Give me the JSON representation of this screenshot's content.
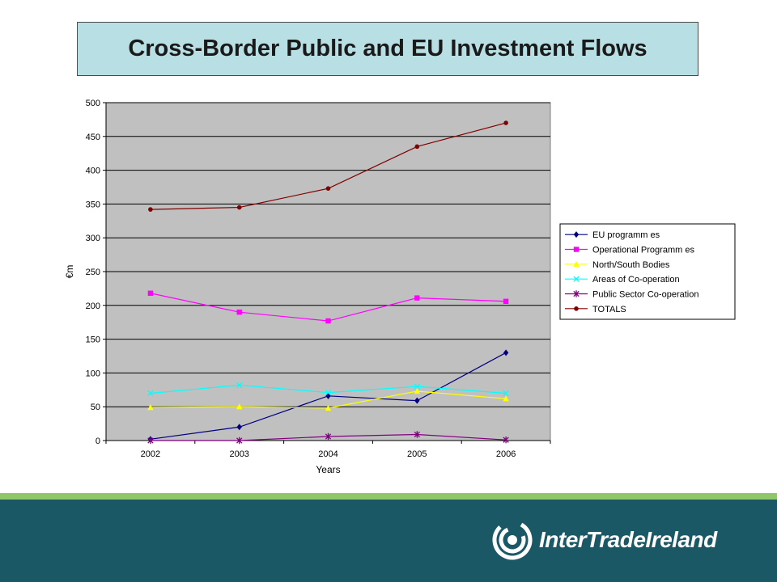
{
  "slide": {
    "title": "Cross-Border Public and EU Investment Flows"
  },
  "brand": {
    "logo_text": "InterTradeIreland",
    "logo_icon": "swirl-icon",
    "band_color": "#1b5866",
    "stripe_color": "#8fc66a"
  },
  "chart_data": {
    "type": "line",
    "title": "",
    "xlabel": "Years",
    "ylabel": "€m",
    "x": [
      "2002",
      "2003",
      "2004",
      "2005",
      "2006"
    ],
    "ylim": [
      0,
      500
    ],
    "yticks": [
      0,
      50,
      100,
      150,
      200,
      250,
      300,
      350,
      400,
      450,
      500
    ],
    "grid": true,
    "plot_background": "#c0c0c0",
    "legend_position": "right",
    "series": [
      {
        "name": "EU programm es",
        "color": "#000080",
        "marker": "diamond",
        "values": [
          2,
          20,
          66,
          59,
          130
        ]
      },
      {
        "name": "Operational Programm es",
        "color": "#ff00ff",
        "marker": "square",
        "values": [
          218,
          190,
          177,
          211,
          206
        ]
      },
      {
        "name": "North/South Bodies",
        "color": "#ffff00",
        "marker": "triangle",
        "values": [
          49,
          50,
          48,
          73,
          62
        ]
      },
      {
        "name": "Areas of Co-operation",
        "color": "#00ffff",
        "marker": "x",
        "values": [
          70,
          82,
          71,
          80,
          70
        ]
      },
      {
        "name": "Public Sector Co-operation",
        "color": "#800080",
        "marker": "star",
        "values": [
          0,
          0,
          6,
          9,
          1
        ]
      },
      {
        "name": "TOTALS",
        "color": "#800000",
        "marker": "circle",
        "values": [
          342,
          345,
          373,
          435,
          470
        ]
      }
    ]
  }
}
